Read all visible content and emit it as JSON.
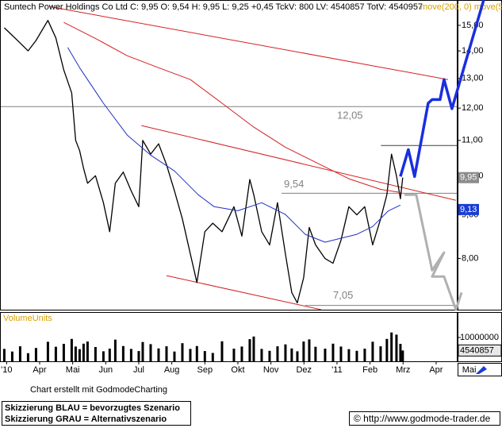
{
  "chart_data": {
    "type": "line",
    "title": "Suntech Power Holdings Co Ltd C: 9,95 O: 9,54 H: 9,95 L: 9,25 +0,45 TckV: 800 LV: 4540857 TotV: 4540957",
    "indicator_label": "move(200, 0) move(50",
    "log_scale": true,
    "xlim": [
      -0.2,
      13.65
    ],
    "xticks": [
      {
        "value": 0,
        "label": "'10"
      },
      {
        "value": 1,
        "label": "Apr"
      },
      {
        "value": 2,
        "label": "Mai"
      },
      {
        "value": 3,
        "label": "Jun"
      },
      {
        "value": 4,
        "label": "Jul"
      },
      {
        "value": 5,
        "label": "Aug"
      },
      {
        "value": 6,
        "label": "Sep"
      },
      {
        "value": 7,
        "label": "Okt"
      },
      {
        "value": 8,
        "label": "Nov"
      },
      {
        "value": 9,
        "label": "Dez"
      },
      {
        "value": 10,
        "label": "'11"
      },
      {
        "value": 11,
        "label": "Feb"
      },
      {
        "value": 12,
        "label": "Mrz"
      },
      {
        "value": 13,
        "label": "Apr"
      },
      {
        "value": 14,
        "label": "Mai"
      }
    ],
    "ylim": [
      6.97,
      16.06
    ],
    "yticks": [
      {
        "value": 8,
        "label": "8,00"
      },
      {
        "value": 9,
        "label": "9,00"
      },
      {
        "value": 10,
        "label": "10,00"
      },
      {
        "value": 11,
        "label": "11,00"
      },
      {
        "value": 12,
        "label": "12,00"
      },
      {
        "value": 13,
        "label": "13,00"
      },
      {
        "value": 14,
        "label": "14,00"
      },
      {
        "value": 15,
        "label": "15,00"
      }
    ],
    "series": [
      {
        "color": "#000000",
        "width": 1.3,
        "x": [
          -0.07,
          0.17,
          0.41,
          0.65,
          0.89,
          1.25,
          1.49,
          1.73,
          1.97,
          2.09,
          2.21,
          2.33,
          2.45,
          2.69,
          2.93,
          3.12,
          3.29,
          3.53,
          3.77,
          4.0,
          4.12,
          4.36,
          4.6,
          4.84,
          5.08,
          5.32,
          5.56,
          5.76,
          6.0,
          6.24,
          6.52,
          6.88,
          7.12,
          7.36,
          7.48,
          7.72,
          7.96,
          8.2,
          8.44,
          8.63,
          8.8,
          8.99,
          9.16,
          9.35,
          9.64,
          9.88,
          10.12,
          10.36,
          10.6,
          10.84,
          11.08,
          11.32,
          11.51,
          11.65,
          11.8,
          11.92,
          11.99
        ],
        "values": [
          14.9,
          14.6,
          14.3,
          14.0,
          14.4,
          15.2,
          14.5,
          13.3,
          12.5,
          11.0,
          10.7,
          10.2,
          9.8,
          10.0,
          9.3,
          8.6,
          9.8,
          10.1,
          9.6,
          9.2,
          11.0,
          10.6,
          10.9,
          10.3,
          9.6,
          8.9,
          8.1,
          7.5,
          8.6,
          8.8,
          8.6,
          9.2,
          8.5,
          9.9,
          9.5,
          8.6,
          8.3,
          9.3,
          8.1,
          7.3,
          7.1,
          7.6,
          8.7,
          8.3,
          8.0,
          7.9,
          8.4,
          9.2,
          9.0,
          9.2,
          8.3,
          8.9,
          9.5,
          10.6,
          10.0,
          9.4,
          9.95
        ]
      },
      {
        "color": "#d42020",
        "width": 1,
        "x": [
          1.73,
          2.69,
          3.65,
          4.6,
          5.56,
          6.52,
          7.48,
          8.44,
          9.4,
          10.36,
          11.32,
          11.92
        ],
        "values": [
          15.12,
          14.48,
          13.82,
          13.38,
          12.96,
          12.16,
          11.4,
          10.8,
          10.35,
          9.92,
          9.64,
          9.56
        ]
      },
      {
        "color": "#2030c0",
        "width": 1,
        "x": [
          1.85,
          2.21,
          2.93,
          3.65,
          4.36,
          5.08,
          5.8,
          6.28,
          7.0,
          7.72,
          8.44,
          9.04,
          9.64,
          10.12,
          10.6,
          11.08,
          11.56,
          11.92
        ],
        "values": [
          14.13,
          13.38,
          12.16,
          11.16,
          10.57,
          10.13,
          9.5,
          9.2,
          9.1,
          9.3,
          9.01,
          8.54,
          8.36,
          8.45,
          8.54,
          8.72,
          9.1,
          9.24
        ]
      },
      {
        "color": "#1a2ee0",
        "width": 3.5,
        "x": [
          11.92,
          12.16,
          12.35,
          12.76,
          12.88,
          13.12,
          13.24,
          13.48,
          14.44
        ],
        "values": [
          9.98,
          10.73,
          9.98,
          12.16,
          12.28,
          12.28,
          12.96,
          11.98,
          16.06
        ]
      },
      {
        "color": "#b0b0b0",
        "width": 3,
        "x": [
          12.04,
          12.4,
          12.88,
          13.24,
          12.88,
          13.24,
          13.6,
          13.77
        ],
        "values": [
          9.5,
          9.5,
          7.75,
          8.13,
          7.62,
          7.62,
          6.97,
          7.3
        ]
      }
    ],
    "trendlines": [
      {
        "color": "#d42020",
        "x": [
          1.29,
          13.36
        ],
        "values": [
          15.78,
          12.96
        ]
      },
      {
        "color": "#d42020",
        "x": [
          4.08,
          13.6
        ],
        "values": [
          11.45,
          9.36
        ]
      },
      {
        "color": "#d42020",
        "x": [
          4.84,
          9.52
        ],
        "values": [
          7.64,
          6.97
        ]
      }
    ],
    "levels": [
      {
        "value": 12.05,
        "label": "12,05",
        "from": -0.2,
        "color": "#808080"
      },
      {
        "value": 9.54,
        "label": "9,54",
        "from": 8.32,
        "color": "#808080"
      },
      {
        "value": 7.05,
        "label": "7,05",
        "from": 9.04,
        "color": "#808080"
      },
      {
        "value": 10.85,
        "from": 11.33,
        "color": "#404040"
      }
    ],
    "price_tags": [
      {
        "value": 9.95,
        "label": "9,95",
        "color": "#8c8c8c"
      },
      {
        "value": 9.13,
        "label": "9,13",
        "color": "#1a3cd6"
      }
    ],
    "volume": {
      "title": "VolumeUnits",
      "color": "#000000",
      "ylim": [
        0,
        20000000
      ],
      "yticks": [
        {
          "value": 10000000,
          "label": "10000000"
        }
      ],
      "values": [
        5200000,
        4100000,
        6300000,
        3400000,
        5600000,
        8200000,
        6100000,
        7300000,
        9400000,
        6200000,
        5100000,
        7400000,
        8300000,
        6000000,
        4200000,
        5300000,
        9100000,
        6400000,
        5200000,
        4300000,
        8100000,
        7200000,
        5400000,
        6300000,
        4100000,
        7600000,
        5200000,
        6400000,
        4300000,
        3500000,
        8400000,
        5300000,
        6200000,
        9300000,
        10400000,
        5200000,
        4400000,
        6300000,
        7100000,
        5400000,
        4200000,
        8300000,
        9200000,
        6100000,
        5300000,
        7400000,
        6200000,
        5100000,
        4400000,
        5300000,
        8200000,
        6300000,
        9400000,
        12100000,
        11200000,
        7300000,
        4540857
      ],
      "last": 4540857
    }
  },
  "footer": {
    "credit": "Chart erstellt mit GodmodeCharting",
    "legend": [
      "Skizzierung BLAU = bevorzugtes Szenario",
      "Skizzierung GRAU = Alternativszenario"
    ],
    "url": "© http://www.godmode-trader.de"
  }
}
